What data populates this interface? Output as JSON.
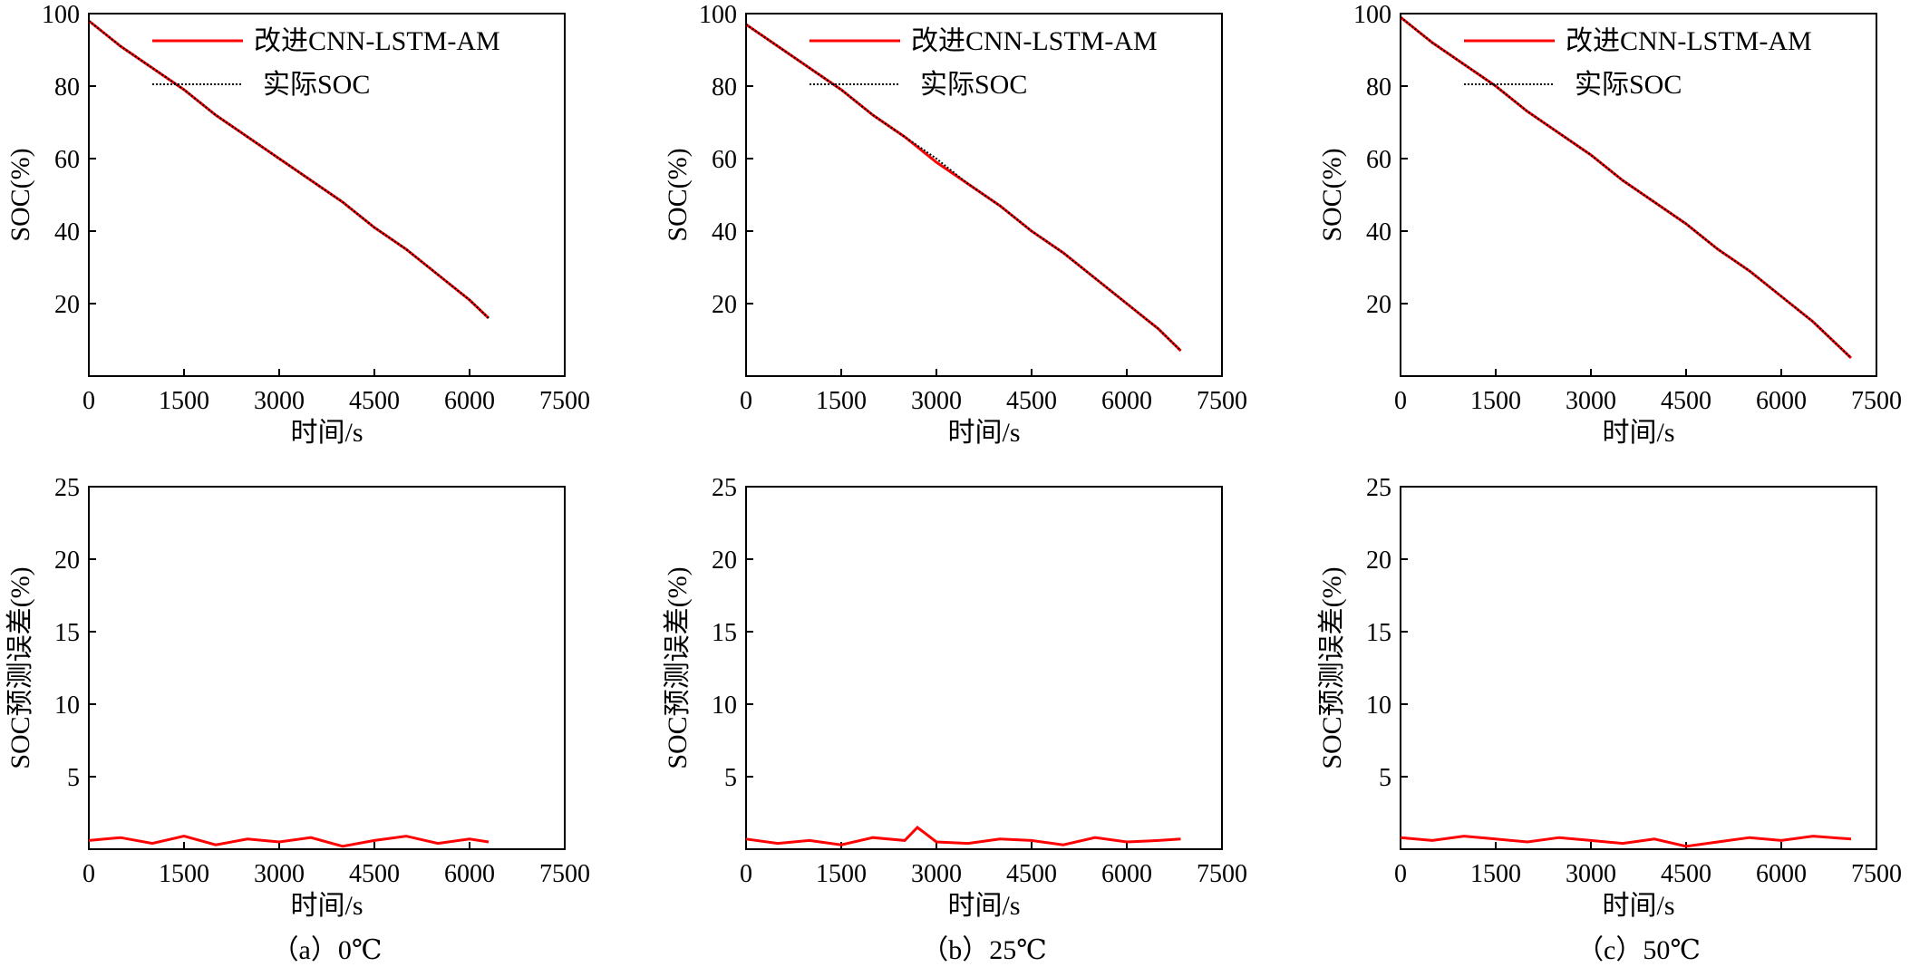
{
  "chart_data": [
    {
      "type": "line",
      "panel": "a",
      "xlabel": "时间/s",
      "ylabel": "SOC(%)",
      "xlim": [
        0,
        7500
      ],
      "ylim": [
        0,
        100
      ],
      "xticks": [
        "0",
        "1500",
        "3000",
        "4500",
        "6000",
        "7500"
      ],
      "yticks": [
        "20",
        "40",
        "60",
        "80",
        "100"
      ],
      "legend": [
        "改进CNN-LSTM-AM",
        "实际SOC"
      ],
      "legend_position": "top-right",
      "series": [
        {
          "name": "改进CNN-LSTM-AM",
          "color": "#ff0000",
          "style": "solid",
          "x": [
            0,
            500,
            1000,
            1500,
            2000,
            2500,
            3000,
            3500,
            4000,
            4500,
            5000,
            5500,
            6000,
            6300
          ],
          "y": [
            98,
            91,
            85,
            79,
            72,
            66,
            60,
            54,
            48,
            41,
            35,
            28,
            21,
            16
          ]
        },
        {
          "name": "实际SOC",
          "color": "#000000",
          "style": "dotted",
          "x": [
            0,
            500,
            1000,
            1500,
            2000,
            2500,
            3000,
            3500,
            4000,
            4500,
            5000,
            5500,
            6000,
            6300
          ],
          "y": [
            98,
            91,
            85,
            79,
            72,
            66,
            60,
            54,
            48,
            41,
            35,
            28,
            21,
            16
          ]
        }
      ]
    },
    {
      "type": "line",
      "panel": "b",
      "xlabel": "时间/s",
      "ylabel": "SOC(%)",
      "xlim": [
        0,
        7500
      ],
      "ylim": [
        0,
        100
      ],
      "xticks": [
        "0",
        "1500",
        "3000",
        "4500",
        "6000",
        "7500"
      ],
      "yticks": [
        "20",
        "40",
        "60",
        "80",
        "100"
      ],
      "legend": [
        "改进CNN-LSTM-AM",
        "实际SOC"
      ],
      "legend_position": "top-right",
      "series": [
        {
          "name": "改进CNN-LSTM-AM",
          "color": "#ff0000",
          "style": "solid",
          "x": [
            0,
            500,
            1000,
            1500,
            2000,
            2500,
            3000,
            3500,
            4000,
            4500,
            5000,
            5500,
            6000,
            6500,
            6850
          ],
          "y": [
            97,
            91,
            85,
            79,
            72,
            66,
            59,
            53,
            47,
            40,
            34,
            27,
            20,
            13,
            7
          ]
        },
        {
          "name": "实际SOC",
          "color": "#000000",
          "style": "dotted",
          "x": [
            0,
            500,
            1000,
            1500,
            2000,
            2500,
            3000,
            3500,
            4000,
            4500,
            5000,
            5500,
            6000,
            6500,
            6850
          ],
          "y": [
            97,
            91,
            85,
            79,
            72,
            66,
            60,
            53,
            47,
            40,
            34,
            27,
            20,
            13,
            7
          ]
        }
      ]
    },
    {
      "type": "line",
      "panel": "c",
      "xlabel": "时间/s",
      "ylabel": "SOC(%)",
      "xlim": [
        0,
        7500
      ],
      "ylim": [
        0,
        100
      ],
      "xticks": [
        "0",
        "1500",
        "3000",
        "4500",
        "6000",
        "7500"
      ],
      "yticks": [
        "20",
        "40",
        "60",
        "80",
        "100"
      ],
      "legend": [
        "改进CNN-LSTM-AM",
        "实际SOC"
      ],
      "legend_position": "top-right",
      "series": [
        {
          "name": "改进CNN-LSTM-AM",
          "color": "#ff0000",
          "style": "solid",
          "x": [
            0,
            500,
            1000,
            1500,
            2000,
            2500,
            3000,
            3500,
            4000,
            4500,
            5000,
            5500,
            6000,
            6500,
            7100
          ],
          "y": [
            99,
            92,
            86,
            80,
            73,
            67,
            61,
            54,
            48,
            42,
            35,
            29,
            22,
            15,
            5
          ]
        },
        {
          "name": "实际SOC",
          "color": "#000000",
          "style": "dotted",
          "x": [
            0,
            500,
            1000,
            1500,
            2000,
            2500,
            3000,
            3500,
            4000,
            4500,
            5000,
            5500,
            6000,
            6500,
            7100
          ],
          "y": [
            99,
            92,
            86,
            80,
            73,
            67,
            61,
            54,
            48,
            42,
            35,
            29,
            22,
            15,
            5
          ]
        }
      ]
    },
    {
      "type": "line",
      "panel": "a",
      "xlabel": "时间/s",
      "ylabel": "SOC预测误差(%)",
      "xlim": [
        0,
        7500
      ],
      "ylim": [
        0,
        25
      ],
      "xticks": [
        "0",
        "1500",
        "3000",
        "4500",
        "6000",
        "7500"
      ],
      "yticks": [
        "5",
        "10",
        "15",
        "20",
        "25"
      ],
      "series": [
        {
          "name": "",
          "color": "#ff0000",
          "style": "solid",
          "x": [
            0,
            500,
            1000,
            1500,
            2000,
            2500,
            3000,
            3500,
            4000,
            4500,
            5000,
            5500,
            6000,
            6300
          ],
          "y": [
            0.6,
            0.8,
            0.4,
            0.9,
            0.3,
            0.7,
            0.5,
            0.8,
            0.2,
            0.6,
            0.9,
            0.4,
            0.7,
            0.5
          ]
        }
      ]
    },
    {
      "type": "line",
      "panel": "b",
      "xlabel": "时间/s",
      "ylabel": "SOC预测误差(%)",
      "xlim": [
        0,
        7500
      ],
      "ylim": [
        0,
        25
      ],
      "xticks": [
        "0",
        "1500",
        "3000",
        "4500",
        "6000",
        "7500"
      ],
      "yticks": [
        "5",
        "10",
        "15",
        "20",
        "25"
      ],
      "series": [
        {
          "name": "",
          "color": "#ff0000",
          "style": "solid",
          "x": [
            0,
            500,
            1000,
            1500,
            2000,
            2500,
            2700,
            3000,
            3500,
            4000,
            4500,
            5000,
            5500,
            6000,
            6500,
            6850
          ],
          "y": [
            0.7,
            0.4,
            0.6,
            0.3,
            0.8,
            0.6,
            1.5,
            0.5,
            0.4,
            0.7,
            0.6,
            0.3,
            0.8,
            0.5,
            0.6,
            0.7
          ]
        }
      ]
    },
    {
      "type": "line",
      "panel": "c",
      "xlabel": "时间/s",
      "ylabel": "SOC预测误差(%)",
      "xlim": [
        0,
        7500
      ],
      "ylim": [
        0,
        25
      ],
      "xticks": [
        "0",
        "1500",
        "3000",
        "4500",
        "6000",
        "7500"
      ],
      "yticks": [
        "5",
        "10",
        "15",
        "20",
        "25"
      ],
      "series": [
        {
          "name": "",
          "color": "#ff0000",
          "style": "solid",
          "x": [
            0,
            500,
            1000,
            1500,
            2000,
            2500,
            3000,
            3500,
            4000,
            4500,
            5000,
            5500,
            6000,
            6500,
            7100
          ],
          "y": [
            0.8,
            0.6,
            0.9,
            0.7,
            0.5,
            0.8,
            0.6,
            0.4,
            0.7,
            0.2,
            0.5,
            0.8,
            0.6,
            0.9,
            0.7
          ]
        }
      ]
    }
  ],
  "captions": [
    "（a）0℃",
    "（b）25℃",
    "（c）50℃"
  ]
}
